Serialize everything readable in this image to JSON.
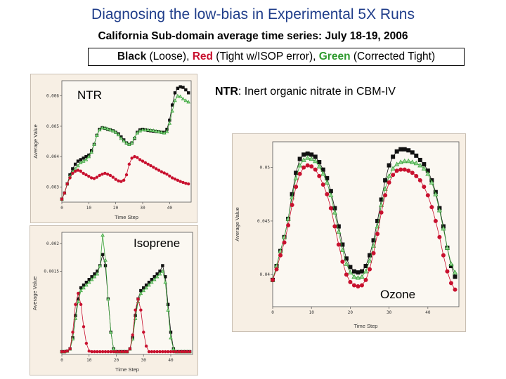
{
  "header": {
    "title": "Diagnosing the low-bias in Experimental 5X Runs",
    "subtitle": "California Sub-domain average time series: July 18-19, 2006"
  },
  "legend": {
    "black_label": "Black",
    "black_desc": " (Loose), ",
    "red_label": "Red",
    "red_desc": " (Tight w/ISOP error), ",
    "green_label": "Green",
    "green_desc": " (Corrected Tight)"
  },
  "note": {
    "term": "NTR",
    "text": ": Inert organic nitrate in CBM-IV"
  },
  "colors": {
    "black": "#111111",
    "red": "#c8102e",
    "green": "#3aa33a",
    "title": "#1f3d8a"
  },
  "chart_data": [
    {
      "id": "ntr",
      "type": "line",
      "title": "NTR",
      "xlabel": "Time Step",
      "ylabel": "Average Value",
      "xlim": [
        0,
        48
      ],
      "ylim": [
        0.0025,
        0.0065
      ],
      "xticks": [
        0,
        10,
        20,
        30,
        40
      ],
      "xtick_labels": [
        "0",
        "10",
        "20",
        "30",
        "40"
      ],
      "yticks": [
        0.003,
        0.004,
        0.005,
        0.006
      ],
      "ytick_labels": [
        "0.003",
        "0.004",
        "0.005",
        "0.006"
      ],
      "x": [
        0,
        1,
        2,
        3,
        4,
        5,
        6,
        7,
        8,
        9,
        10,
        11,
        12,
        13,
        14,
        15,
        16,
        17,
        18,
        19,
        20,
        21,
        22,
        23,
        24,
        25,
        26,
        27,
        28,
        29,
        30,
        31,
        32,
        33,
        34,
        35,
        36,
        37,
        38,
        39,
        40,
        41,
        42,
        43,
        44,
        45,
        46,
        47
      ],
      "series": [
        {
          "color": "black",
          "values": [
            0.0026,
            0.0028,
            0.0031,
            0.0034,
            0.0036,
            0.00375,
            0.00385,
            0.0039,
            0.00395,
            0.004,
            0.00405,
            0.0042,
            0.0044,
            0.0047,
            0.0049,
            0.00495,
            0.00493,
            0.0049,
            0.00488,
            0.00485,
            0.0048,
            0.00475,
            0.00465,
            0.00455,
            0.00445,
            0.0044,
            0.00445,
            0.0046,
            0.0048,
            0.00488,
            0.0049,
            0.00488,
            0.00486,
            0.00485,
            0.00484,
            0.00483,
            0.00482,
            0.0048,
            0.0048,
            0.0049,
            0.0052,
            0.0057,
            0.0061,
            0.00625,
            0.0063,
            0.00628,
            0.0062,
            0.0061
          ]
        },
        {
          "color": "green",
          "values": [
            0.0026,
            0.0028,
            0.0031,
            0.00335,
            0.0035,
            0.0036,
            0.0037,
            0.0038,
            0.00385,
            0.0039,
            0.004,
            0.00415,
            0.0044,
            0.0047,
            0.00488,
            0.00495,
            0.00494,
            0.00492,
            0.00488,
            0.00485,
            0.0048,
            0.00472,
            0.0046,
            0.00452,
            0.00445,
            0.0044,
            0.00445,
            0.00462,
            0.00478,
            0.00485,
            0.00488,
            0.00488,
            0.00488,
            0.00487,
            0.00486,
            0.00484,
            0.00482,
            0.0048,
            0.00478,
            0.00483,
            0.0051,
            0.0055,
            0.00585,
            0.006,
            0.00598,
            0.0059,
            0.00585,
            0.0058
          ]
        },
        {
          "color": "red",
          "values": [
            0.0026,
            0.0028,
            0.0031,
            0.0033,
            0.00345,
            0.00352,
            0.00355,
            0.00352,
            0.00345,
            0.0034,
            0.00335,
            0.0033,
            0.00328,
            0.00332,
            0.00338,
            0.00342,
            0.00345,
            0.00342,
            0.00338,
            0.00332,
            0.00325,
            0.0032,
            0.00318,
            0.00322,
            0.0034,
            0.00375,
            0.00395,
            0.004,
            0.00397,
            0.0039,
            0.00385,
            0.0038,
            0.00375,
            0.0037,
            0.00365,
            0.0036,
            0.00355,
            0.0035,
            0.00346,
            0.00342,
            0.00336,
            0.0033,
            0.00326,
            0.00322,
            0.00318,
            0.00315,
            0.00312,
            0.0031
          ]
        }
      ]
    },
    {
      "id": "isoprene",
      "type": "line",
      "title": "Isoprene",
      "xlabel": "Time Step",
      "ylabel": "Average Value",
      "xlim": [
        0,
        48
      ],
      "ylim": [
        0,
        0.0022
      ],
      "xticks": [
        0,
        10,
        20,
        30,
        40
      ],
      "xtick_labels": [
        "0",
        "10",
        "20",
        "30",
        "40"
      ],
      "yticks": [
        0.0015,
        0.002
      ],
      "ytick_labels": [
        "0.0015",
        "0.002"
      ],
      "x": [
        0,
        1,
        2,
        3,
        4,
        5,
        6,
        7,
        8,
        9,
        10,
        11,
        12,
        13,
        14,
        15,
        16,
        17,
        18,
        19,
        20,
        21,
        22,
        23,
        24,
        25,
        26,
        27,
        28,
        29,
        30,
        31,
        32,
        33,
        34,
        35,
        36,
        37,
        38,
        39,
        40,
        41,
        42,
        43,
        44,
        45,
        46,
        47
      ],
      "series": [
        {
          "color": "black",
          "values": [
            5e-05,
            5e-05,
            6e-05,
            0.0001,
            0.0003,
            0.0007,
            0.001,
            0.0012,
            0.00125,
            0.0013,
            0.00135,
            0.0014,
            0.00145,
            0.0015,
            0.0016,
            0.0018,
            0.0016,
            0.001,
            0.0004,
            0.0001,
            5e-05,
            5e-05,
            5e-05,
            5e-05,
            5e-05,
            0.0001,
            0.0003,
            0.0007,
            0.001,
            0.00115,
            0.0012,
            0.00125,
            0.0013,
            0.00135,
            0.0014,
            0.00145,
            0.0015,
            0.0016,
            0.0014,
            0.0009,
            0.0004,
            0.0001,
            5e-05,
            5e-05,
            5e-05,
            5e-05,
            5e-05,
            5e-05
          ]
        },
        {
          "color": "green",
          "values": [
            5e-05,
            5e-05,
            6e-05,
            0.0001,
            0.00028,
            0.00065,
            0.00095,
            0.00115,
            0.0012,
            0.00125,
            0.0013,
            0.00135,
            0.0014,
            0.00145,
            0.0016,
            0.00215,
            0.0017,
            0.001,
            0.0004,
            0.0001,
            5e-05,
            5e-05,
            5e-05,
            5e-05,
            5e-05,
            0.0001,
            0.00028,
            0.00065,
            0.00095,
            0.0011,
            0.00115,
            0.0012,
            0.00125,
            0.0013,
            0.00135,
            0.0014,
            0.00145,
            0.0015,
            0.0013,
            0.0008,
            0.0003,
            0.0001,
            5e-05,
            5e-05,
            5e-05,
            5e-05,
            5e-05,
            5e-05
          ]
        },
        {
          "color": "red",
          "values": [
            5e-05,
            5e-05,
            6e-05,
            0.0001,
            0.0004,
            0.0009,
            0.0011,
            0.0009,
            0.0005,
            0.0002,
            6e-05,
            5e-05,
            5e-05,
            5e-05,
            5e-05,
            5e-05,
            5e-05,
            5e-05,
            5e-05,
            5e-05,
            5e-05,
            5e-05,
            5e-05,
            5e-05,
            5e-05,
            0.0001,
            0.00035,
            0.0008,
            0.001,
            0.0008,
            0.0004,
            0.00015,
            5e-05,
            5e-05,
            5e-05,
            5e-05,
            5e-05,
            5e-05,
            5e-05,
            5e-05,
            5e-05,
            5e-05,
            5e-05,
            5e-05,
            5e-05,
            5e-05,
            5e-05,
            5e-05
          ]
        }
      ]
    },
    {
      "id": "ozone",
      "type": "line",
      "title": "Ozone",
      "xlabel": "Time Step",
      "ylabel": "Average Value",
      "xlim": [
        0,
        48
      ],
      "ylim": [
        0.037,
        0.0524
      ],
      "xticks": [
        0,
        10,
        20,
        30,
        40
      ],
      "xtick_labels": [
        "0",
        "10",
        "20",
        "30",
        "40"
      ],
      "yticks": [
        0.04,
        0.045,
        0.05
      ],
      "ytick_labels": [
        "0.04",
        "0.045",
        "0.05"
      ],
      "x": [
        0,
        1,
        2,
        3,
        4,
        5,
        6,
        7,
        8,
        9,
        10,
        11,
        12,
        13,
        14,
        15,
        16,
        17,
        18,
        19,
        20,
        21,
        22,
        23,
        24,
        25,
        26,
        27,
        28,
        29,
        30,
        31,
        32,
        33,
        34,
        35,
        36,
        37,
        38,
        39,
        40,
        41,
        42,
        43,
        44,
        45,
        46,
        47
      ],
      "series": [
        {
          "color": "black",
          "values": [
            0.0395,
            0.0408,
            0.0422,
            0.0435,
            0.0452,
            0.0475,
            0.0495,
            0.0508,
            0.0512,
            0.0513,
            0.0512,
            0.051,
            0.0505,
            0.0498,
            0.049,
            0.0478,
            0.0462,
            0.0445,
            0.0428,
            0.0415,
            0.0407,
            0.0403,
            0.0402,
            0.0403,
            0.0408,
            0.0418,
            0.0432,
            0.045,
            0.047,
            0.0488,
            0.0502,
            0.051,
            0.0515,
            0.0517,
            0.0517,
            0.0516,
            0.0514,
            0.0511,
            0.0507,
            0.0503,
            0.0497,
            0.0488,
            0.0477,
            0.0462,
            0.0445,
            0.0425,
            0.0408,
            0.0398
          ]
        },
        {
          "color": "green",
          "values": [
            0.0395,
            0.0408,
            0.0422,
            0.0435,
            0.0452,
            0.0472,
            0.049,
            0.0502,
            0.0507,
            0.0509,
            0.0508,
            0.0506,
            0.0501,
            0.0494,
            0.0486,
            0.0474,
            0.0458,
            0.044,
            0.0423,
            0.041,
            0.0402,
            0.0398,
            0.0397,
            0.0398,
            0.0403,
            0.0413,
            0.0427,
            0.0445,
            0.0465,
            0.048,
            0.0492,
            0.0499,
            0.0503,
            0.0505,
            0.0506,
            0.0506,
            0.0505,
            0.0504,
            0.0502,
            0.0499,
            0.0494,
            0.0486,
            0.0475,
            0.046,
            0.0443,
            0.0425,
            0.041,
            0.0402
          ]
        },
        {
          "color": "red",
          "values": [
            0.0395,
            0.0405,
            0.0418,
            0.043,
            0.0446,
            0.0465,
            0.0482,
            0.0494,
            0.05,
            0.0502,
            0.0501,
            0.0498,
            0.0492,
            0.0484,
            0.0475,
            0.0462,
            0.0445,
            0.0428,
            0.0412,
            0.04,
            0.0393,
            0.039,
            0.0389,
            0.039,
            0.0395,
            0.0405,
            0.042,
            0.0438,
            0.0458,
            0.0474,
            0.0486,
            0.0493,
            0.0497,
            0.0498,
            0.0498,
            0.0497,
            0.0495,
            0.0492,
            0.0488,
            0.0482,
            0.0474,
            0.0463,
            0.045,
            0.0435,
            0.0418,
            0.0403,
            0.0392,
            0.0386
          ]
        }
      ]
    }
  ]
}
